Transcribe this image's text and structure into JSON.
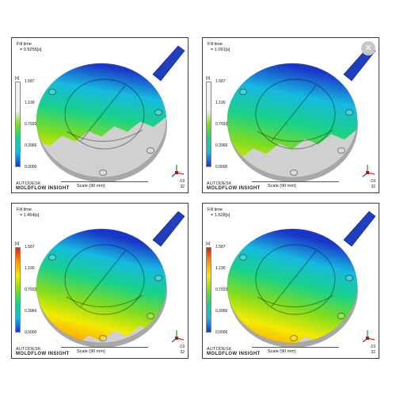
{
  "panels": [
    {
      "fill_time_label": "Fill time",
      "fill_time_value": "= 0.9255[s]",
      "unit": "[s]",
      "ticks": [
        "1.587",
        "1.190",
        "0.7933",
        "0.3966",
        "0.0000"
      ],
      "brand_autodesk": "AUTODESK",
      "brand_moldflow": "MOLDFLOW  INSIGHT",
      "scale_text": "Scale (90 mm)",
      "triad_numbers": [
        "-19",
        "32"
      ],
      "fill_fraction": 0.58
    },
    {
      "fill_time_label": "Fill time",
      "fill_time_value": "= 1.091[s]",
      "unit": "[s]",
      "ticks": [
        "1.587",
        "1.190",
        "0.7933",
        "0.3966",
        "0.0000"
      ],
      "brand_autodesk": "AUTODESK",
      "brand_moldflow": "MOLDFLOW  INSIGHT",
      "scale_text": "Scale (90 mm)",
      "triad_numbers": [
        "-19",
        "32"
      ],
      "fill_fraction": 0.69
    },
    {
      "fill_time_label": "Fill time",
      "fill_time_value": "= 1.454[s]",
      "unit": "[s]",
      "ticks": [
        "1.587",
        "1.190",
        "0.7933",
        "0.3966",
        "0.0000"
      ],
      "brand_autodesk": "AUTODESK",
      "brand_moldflow": "MOLDFLOW  INSIGHT",
      "scale_text": "Scale (90 mm)",
      "triad_numbers": [
        "-19",
        "32"
      ],
      "fill_fraction": 0.92
    },
    {
      "fill_time_label": "Fill time",
      "fill_time_value": "= 1.528[s]",
      "unit": "[s]",
      "ticks": [
        "1.587",
        "1.190",
        "0.7933",
        "0.3966",
        "0.0000"
      ],
      "brand_autodesk": "AUTODESK",
      "brand_moldflow": "MOLDFLOW  INSIGHT",
      "scale_text": "Scale (90 mm)",
      "triad_numbers": [
        "-19",
        "32"
      ],
      "fill_fraction": 0.97
    }
  ],
  "icons": {
    "close": "close-icon"
  },
  "colors": {
    "unfilled": "#d0d0d0",
    "runner": "#1f3fbf",
    "legend_stops": [
      "#e31a1c",
      "#ff9900",
      "#f4ea00",
      "#7fdc20",
      "#18d18a",
      "#16b9e0",
      "#1a35c9"
    ]
  }
}
